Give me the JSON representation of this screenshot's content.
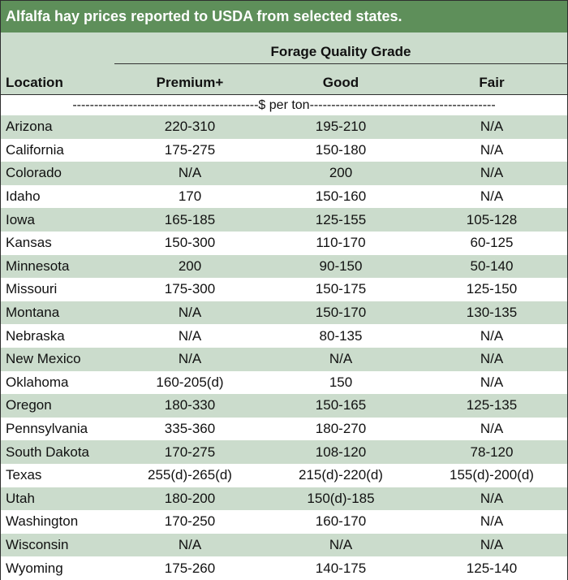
{
  "title": "Alfalfa hay prices reported to USDA from selected states.",
  "header": {
    "group_label": "Forage Quality Grade",
    "location": "Location",
    "premium": "Premium+",
    "good": "Good",
    "fair": "Fair"
  },
  "units": {
    "left_dashes": "-------------------------------------------",
    "label": "$ per ton",
    "right_dashes": "-------------------------------------------"
  },
  "rows": [
    {
      "location": "Arizona",
      "premium": "220-310",
      "good": "195-210",
      "fair": "N/A"
    },
    {
      "location": "California",
      "premium": "175-275",
      "good": "150-180",
      "fair": "N/A"
    },
    {
      "location": "Colorado",
      "premium": "N/A",
      "good": "200",
      "fair": "N/A"
    },
    {
      "location": "Idaho",
      "premium": "170",
      "good": "150-160",
      "fair": "N/A"
    },
    {
      "location": "Iowa",
      "premium": "165-185",
      "good": "125-155",
      "fair": "105-128"
    },
    {
      "location": "Kansas",
      "premium": "150-300",
      "good": "110-170",
      "fair": "60-125"
    },
    {
      "location": "Minnesota",
      "premium": "200",
      "good": "90-150",
      "fair": "50-140"
    },
    {
      "location": "Missouri",
      "premium": "175-300",
      "good": "150-175",
      "fair": "125-150"
    },
    {
      "location": "Montana",
      "premium": "N/A",
      "good": "150-170",
      "fair": "130-135"
    },
    {
      "location": "Nebraska",
      "premium": "N/A",
      "good": "80-135",
      "fair": "N/A"
    },
    {
      "location": "New Mexico",
      "premium": "N/A",
      "good": "N/A",
      "fair": "N/A"
    },
    {
      "location": "Oklahoma",
      "premium": "160-205(d)",
      "good": "150",
      "fair": "N/A"
    },
    {
      "location": "Oregon",
      "premium": "180-330",
      "good": "150-165",
      "fair": "125-135"
    },
    {
      "location": "Pennsylvania",
      "premium": "335-360",
      "good": "180-270",
      "fair": "N/A"
    },
    {
      "location": "South Dakota",
      "premium": "170-275",
      "good": "108-120",
      "fair": "78-120"
    },
    {
      "location": "Texas",
      "premium": "255(d)-265(d)",
      "good": "215(d)-220(d)",
      "fair": "155(d)-200(d)"
    },
    {
      "location": "Utah",
      "premium": "180-200",
      "good": "150(d)-185",
      "fair": "N/A"
    },
    {
      "location": "Washington",
      "premium": "170-250",
      "good": "160-170",
      "fair": "N/A"
    },
    {
      "location": "Wisconsin",
      "premium": "N/A",
      "good": "N/A",
      "fair": "N/A"
    },
    {
      "location": "Wyoming",
      "premium": "175-260",
      "good": "140-175",
      "fair": "125-140"
    }
  ],
  "colors": {
    "title_bg": "#5e8f5a",
    "band": "#cbdccc",
    "border": "#2f2f2f"
  }
}
